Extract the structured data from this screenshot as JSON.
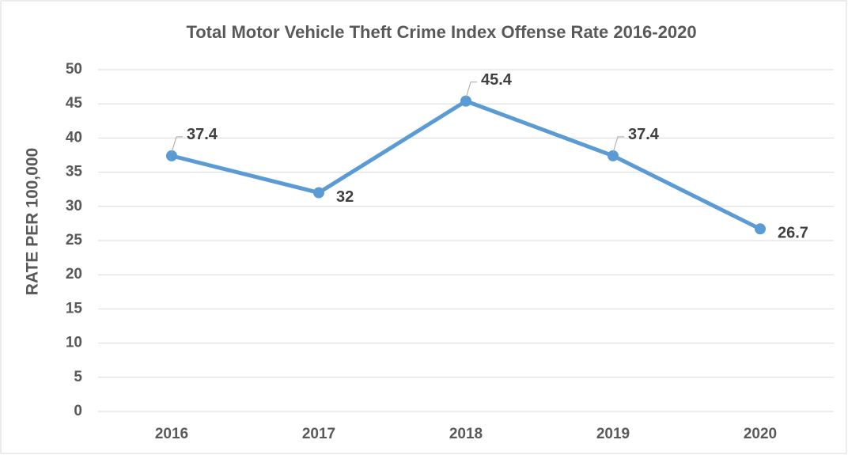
{
  "chart_data": {
    "type": "line",
    "title": "Total Motor Vehicle Theft Crime Index Offense Rate 2016-2020",
    "y_label": "RATE PER 100,000",
    "categories": [
      "2016",
      "2017",
      "2018",
      "2019",
      "2020"
    ],
    "series": [
      {
        "name": "Rate",
        "color": "#5b9bd5",
        "values": [
          37.4,
          32,
          45.4,
          37.4,
          26.7
        ]
      }
    ],
    "ylim": [
      0,
      50
    ],
    "yticks": [
      0,
      5,
      10,
      15,
      20,
      25,
      30,
      35,
      40,
      45,
      50
    ],
    "grid": true
  }
}
